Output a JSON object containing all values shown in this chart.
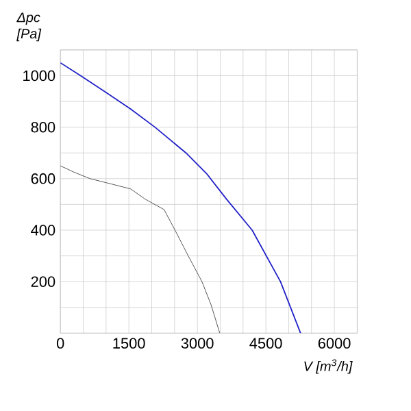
{
  "chart_data": {
    "type": "line",
    "xlabel": "V [m$^{3}$/h]",
    "ylabel": "Δpc [Pa]",
    "series": [
      {
        "color": "#2020c8",
        "x": [
          0,
          443,
          1000,
          1540,
          2070,
          2750,
          3200,
          3640,
          4200,
          4820,
          5260
        ],
        "values": [
          1050,
          1000,
          935,
          870,
          800,
          700,
          620,
          520,
          400,
          200,
          0
        ]
      },
      {
        "color": "#555555",
        "x": [
          0,
          300,
          650,
          1100,
          1540,
          1860,
          2270,
          2510,
          2800,
          3100,
          3300,
          3490
        ],
        "values": [
          650,
          625,
          600,
          580,
          560,
          520,
          480,
          400,
          300,
          200,
          110,
          0
        ]
      }
    ],
    "xlim": [
      0,
      6500
    ],
    "ylim": [
      0,
      1100
    ],
    "xticks": [
      0,
      {
        "value": 500,
        "label": null
      },
      {
        "value": 1000,
        "label": null
      },
      1500,
      {
        "value": 2000,
        "label": null
      },
      {
        "value": 2500,
        "label": null
      },
      3000,
      {
        "value": 3500,
        "label": null
      },
      {
        "value": 4000,
        "label": null
      },
      4500,
      {
        "value": 5000,
        "label": null
      },
      {
        "value": 5500,
        "label": null
      },
      6000,
      {
        "value": 6500,
        "label": null
      }
    ],
    "yticks": [
      {
        "value": 0,
        "label": null
      },
      {
        "value": 100,
        "label": null
      },
      200,
      {
        "value": 300,
        "label": null
      },
      400,
      {
        "value": 500,
        "label": null
      },
      600,
      {
        "value": 700,
        "label": null
      },
      800,
      {
        "value": 900,
        "label": null
      },
      1000,
      {
        "value": 1100,
        "label": null
      }
    ],
    "grid": true,
    "marker": "none",
    "line_style": "solid"
  }
}
